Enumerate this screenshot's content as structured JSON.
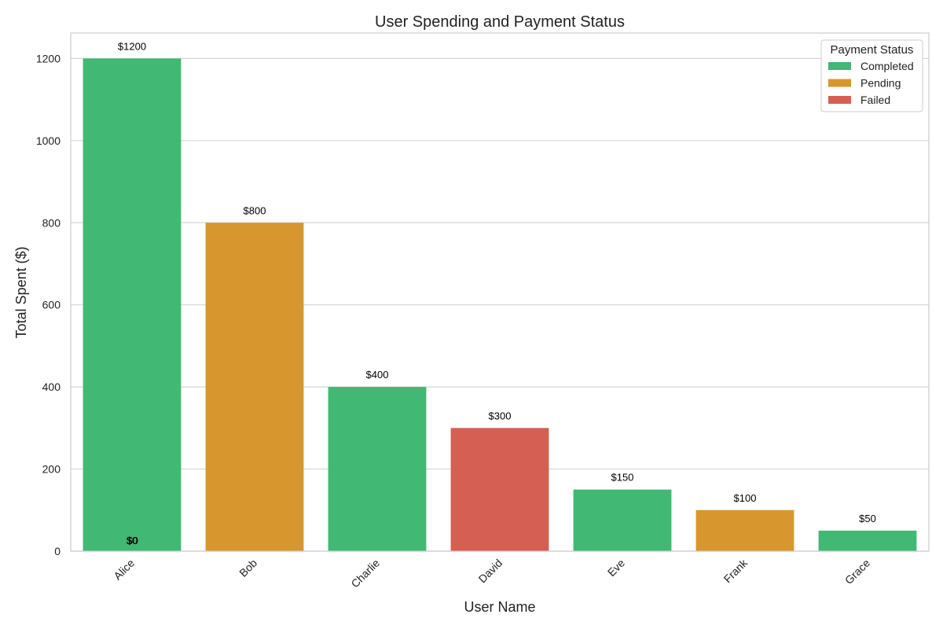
{
  "chart_data": {
    "type": "bar",
    "title": "User Spending and Payment Status",
    "xlabel": "User Name",
    "ylabel": "Total Spent ($)",
    "ylim": [
      0,
      1262
    ],
    "yticks": [
      0,
      200,
      400,
      600,
      800,
      1000,
      1200
    ],
    "grid": "horizontal",
    "legend_position": "top-right",
    "categories": [
      "Alice",
      "Bob",
      "Charlie",
      "David",
      "Eve",
      "Frank",
      "Grace"
    ],
    "values": [
      1200,
      800,
      400,
      300,
      150,
      100,
      50
    ],
    "status": [
      "Completed",
      "Pending",
      "Completed",
      "Failed",
      "Completed",
      "Pending",
      "Completed"
    ],
    "value_labels": [
      "$1200",
      "$800",
      "$400",
      "$300",
      "$150",
      "$100",
      "$50"
    ],
    "extra_zero_labels": [
      {
        "category": "Alice",
        "text": "$0"
      },
      {
        "category": "Alice",
        "text": "$0"
      }
    ],
    "legend": {
      "title": "Payment Status",
      "entries": [
        {
          "label": "Completed",
          "color": "#41b874"
        },
        {
          "label": "Pending",
          "color": "#d8962e"
        },
        {
          "label": "Failed",
          "color": "#d55f52"
        }
      ]
    }
  }
}
